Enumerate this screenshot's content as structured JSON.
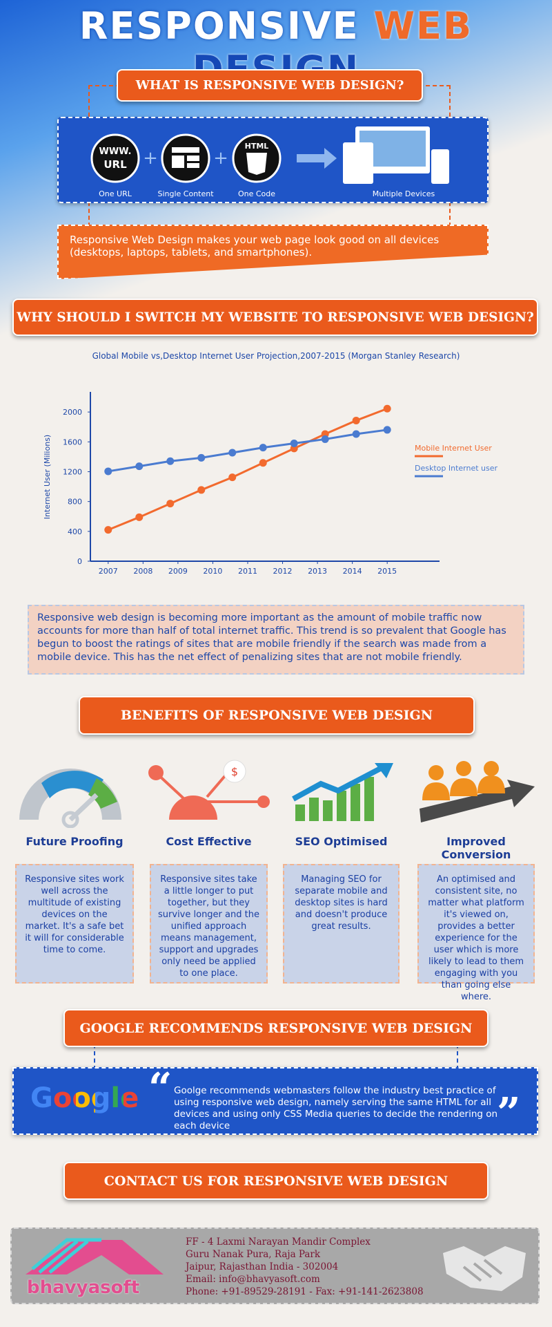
{
  "header": {
    "title": [
      "RESPONSIVE",
      "WEB",
      "DESIGN"
    ]
  },
  "what": {
    "heading": "WHAT IS RESPONSIVE WEB DESIGN?",
    "icon_texts": [
      "WWW.",
      "URL",
      "HTML"
    ],
    "items": [
      "One URL",
      "Single Content",
      "One Code",
      "Multiple Devices"
    ],
    "description": "Responsive Web Design makes your web page look good on all devices (desktops, laptops, tablets, and smartphones)."
  },
  "why": {
    "heading": "WHY SHOULD I SWITCH MY WEBSITE TO RESPONSIVE WEB DESIGN?",
    "paragraph": "Responsive web design is becoming more important as the amount of mobile traffic now accounts for more than half of total internet traffic. This trend is so prevalent that Google has begun to boost the ratings of sites that are mobile friendly if the search was made from a mobile device. This has the net effect of penalizing sites that are not mobile friendly."
  },
  "chart_data": {
    "type": "line",
    "title": "Global Mobile vs,Desktop Internet User Projection,2007-2015 (Morgan Stanley Research)",
    "ylabel": "Internet User (Milions)",
    "x": [
      2007,
      2007.89,
      2008.78,
      2009.67,
      2010.56,
      2011.44,
      2012.33,
      2013.22,
      2014.11,
      2015
    ],
    "series": [
      {
        "name": "Mobile Internet User",
        "color": "#f26a2e",
        "values": [
          420,
          590,
          773,
          955,
          1125,
          1318,
          1511,
          1705,
          1886,
          2045
        ]
      },
      {
        "name": "Desktop Internet user",
        "color": "#4a7bd0",
        "values": [
          1205,
          1273,
          1341,
          1386,
          1455,
          1523,
          1580,
          1636,
          1705,
          1761
        ]
      }
    ],
    "xlim": [
      2006.49,
      2016.5
    ],
    "xticks": [
      2007,
      2008,
      2009,
      2010,
      2011,
      2012,
      2013,
      2014,
      2015
    ],
    "ylim": [
      0,
      2270
    ],
    "yticks": [
      0,
      400,
      800,
      1200,
      1600,
      2000
    ],
    "legend": "right"
  },
  "benefits": {
    "heading": "BENEFITS OF RESPONSIVE WEB DESIGN",
    "items": [
      {
        "title": "Future Proofing",
        "text": "Responsive sites  work well across the multitude of existing devices on the market. It's a safe bet it will for considerable time to come."
      },
      {
        "title": "Cost Effective",
        "text": "Responsive sites take a little longer to put together, but they survive longer and the unified approach means management, support and upgrades only need be applied to one place."
      },
      {
        "title": "SEO Optimised",
        "text": "Managing SEO for separate mobile and desktop sites is hard and doesn't produce great results."
      },
      {
        "title": "Improved Conversion",
        "text": "An optimised and consistent site, no matter what platform it's viewed on, provides a better experience for the user which is more likely to lead to them engaging with you than going else where."
      }
    ]
  },
  "google": {
    "heading": "GOOGLE RECOMMENDS RESPONSIVE WEB DESIGN",
    "logo": "Google",
    "quote": "Goolge recommends webmasters follow the industry best practice of using responsive web design, namely serving the same HTML for all devices and using only CSS Media queries to decide the rendering on each device"
  },
  "contact": {
    "heading": "CONTACT US FOR RESPONSIVE WEB DESIGN",
    "logo": "bhavyasoft",
    "address": [
      "FF - 4  Laxmi Narayan Mandir Complex",
      "Guru Nanak Pura, Raja Park",
      "Jaipur, Rajasthan  India - 302004",
      "Email: info@bhavyasoft.com",
      "Phone: +91-89529-28191 - Fax: +91-141-2623808"
    ]
  }
}
